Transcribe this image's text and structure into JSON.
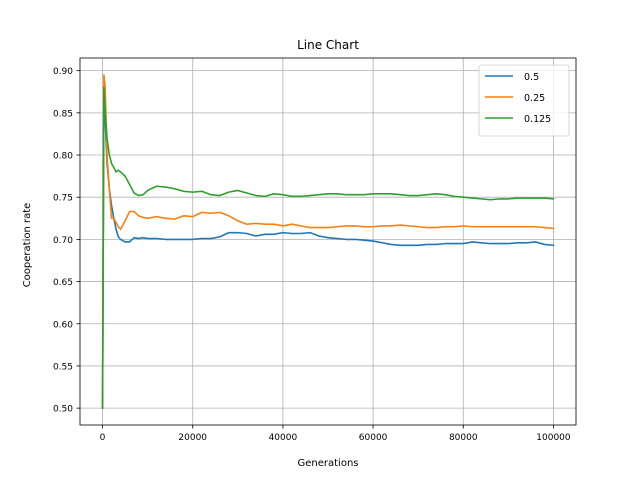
{
  "chart_data": {
    "type": "line",
    "title": "Line Chart",
    "xlabel": "Generations",
    "ylabel": "Cooperation rate",
    "xlim": [
      -5000,
      105000
    ],
    "ylim": [
      0.48,
      0.915
    ],
    "xticks": [
      0,
      20000,
      40000,
      60000,
      80000,
      100000
    ],
    "xtick_labels": [
      "0",
      "20000",
      "40000",
      "60000",
      "80000",
      "100000"
    ],
    "yticks": [
      0.5,
      0.55,
      0.6,
      0.65,
      0.7,
      0.75,
      0.8,
      0.85,
      0.9
    ],
    "ytick_labels": [
      "0.50",
      "0.55",
      "0.60",
      "0.65",
      "0.70",
      "0.75",
      "0.80",
      "0.85",
      "0.90"
    ],
    "grid": true,
    "legend_position": "top-right",
    "series": [
      {
        "name": "0.5",
        "color": "#1f77b4",
        "x": [
          0,
          300,
          600,
          1000,
          1500,
          2000,
          2500,
          3000,
          3500,
          4000,
          5000,
          6000,
          7000,
          8000,
          9000,
          10000,
          12000,
          14000,
          16000,
          18000,
          20000,
          22000,
          24000,
          26000,
          28000,
          30000,
          32000,
          34000,
          36000,
          38000,
          40000,
          42000,
          44000,
          46000,
          48000,
          50000,
          52000,
          54000,
          56000,
          58000,
          60000,
          62000,
          64000,
          66000,
          68000,
          70000,
          72000,
          74000,
          76000,
          78000,
          80000,
          82000,
          84000,
          86000,
          88000,
          90000,
          92000,
          94000,
          96000,
          98000,
          100000
        ],
        "y": [
          0.5,
          0.88,
          0.84,
          0.79,
          0.76,
          0.74,
          0.725,
          0.712,
          0.703,
          0.7,
          0.697,
          0.697,
          0.702,
          0.701,
          0.702,
          0.701,
          0.701,
          0.7,
          0.7,
          0.7,
          0.7,
          0.701,
          0.701,
          0.703,
          0.708,
          0.708,
          0.707,
          0.704,
          0.706,
          0.706,
          0.708,
          0.707,
          0.707,
          0.708,
          0.704,
          0.702,
          0.701,
          0.7,
          0.7,
          0.699,
          0.698,
          0.696,
          0.694,
          0.693,
          0.693,
          0.693,
          0.694,
          0.694,
          0.695,
          0.695,
          0.695,
          0.697,
          0.696,
          0.695,
          0.695,
          0.695,
          0.696,
          0.696,
          0.697,
          0.694,
          0.693
        ]
      },
      {
        "name": "0.25",
        "color": "#ff7f0e",
        "x": [
          0,
          300,
          600,
          1000,
          1500,
          2000,
          2500,
          3000,
          3500,
          4000,
          5000,
          6000,
          7000,
          8000,
          9000,
          10000,
          12000,
          14000,
          16000,
          18000,
          20000,
          22000,
          24000,
          26000,
          28000,
          30000,
          32000,
          34000,
          36000,
          38000,
          40000,
          42000,
          44000,
          46000,
          48000,
          50000,
          52000,
          54000,
          56000,
          58000,
          60000,
          62000,
          64000,
          66000,
          68000,
          70000,
          72000,
          74000,
          76000,
          78000,
          80000,
          82000,
          84000,
          86000,
          88000,
          90000,
          92000,
          94000,
          96000,
          98000,
          100000
        ],
        "y": [
          0.5,
          0.895,
          0.88,
          0.8,
          0.76,
          0.725,
          0.725,
          0.72,
          0.715,
          0.712,
          0.722,
          0.733,
          0.733,
          0.728,
          0.726,
          0.725,
          0.727,
          0.725,
          0.724,
          0.728,
          0.727,
          0.732,
          0.731,
          0.732,
          0.728,
          0.722,
          0.718,
          0.719,
          0.718,
          0.718,
          0.716,
          0.718,
          0.716,
          0.714,
          0.714,
          0.714,
          0.715,
          0.716,
          0.716,
          0.715,
          0.715,
          0.716,
          0.716,
          0.717,
          0.716,
          0.715,
          0.714,
          0.714,
          0.715,
          0.715,
          0.716,
          0.715,
          0.715,
          0.715,
          0.715,
          0.715,
          0.715,
          0.715,
          0.715,
          0.714,
          0.713
        ]
      },
      {
        "name": "0.125",
        "color": "#2ca02c",
        "x": [
          0,
          300,
          600,
          1000,
          1500,
          2000,
          2500,
          3000,
          3500,
          4000,
          5000,
          6000,
          7000,
          8000,
          9000,
          10000,
          12000,
          14000,
          16000,
          18000,
          20000,
          22000,
          24000,
          26000,
          28000,
          30000,
          32000,
          34000,
          36000,
          38000,
          40000,
          42000,
          44000,
          46000,
          48000,
          50000,
          52000,
          54000,
          56000,
          58000,
          60000,
          62000,
          64000,
          66000,
          68000,
          70000,
          72000,
          74000,
          76000,
          78000,
          80000,
          82000,
          84000,
          86000,
          88000,
          90000,
          92000,
          94000,
          96000,
          98000,
          100000
        ],
        "y": [
          0.5,
          0.88,
          0.85,
          0.82,
          0.8,
          0.79,
          0.785,
          0.78,
          0.782,
          0.78,
          0.775,
          0.765,
          0.755,
          0.752,
          0.753,
          0.758,
          0.763,
          0.762,
          0.76,
          0.757,
          0.756,
          0.757,
          0.753,
          0.752,
          0.756,
          0.758,
          0.755,
          0.752,
          0.751,
          0.754,
          0.753,
          0.751,
          0.751,
          0.752,
          0.753,
          0.754,
          0.754,
          0.753,
          0.753,
          0.753,
          0.754,
          0.754,
          0.754,
          0.753,
          0.752,
          0.752,
          0.753,
          0.754,
          0.753,
          0.751,
          0.75,
          0.749,
          0.748,
          0.747,
          0.748,
          0.748,
          0.749,
          0.749,
          0.749,
          0.749,
          0.748
        ]
      }
    ]
  }
}
